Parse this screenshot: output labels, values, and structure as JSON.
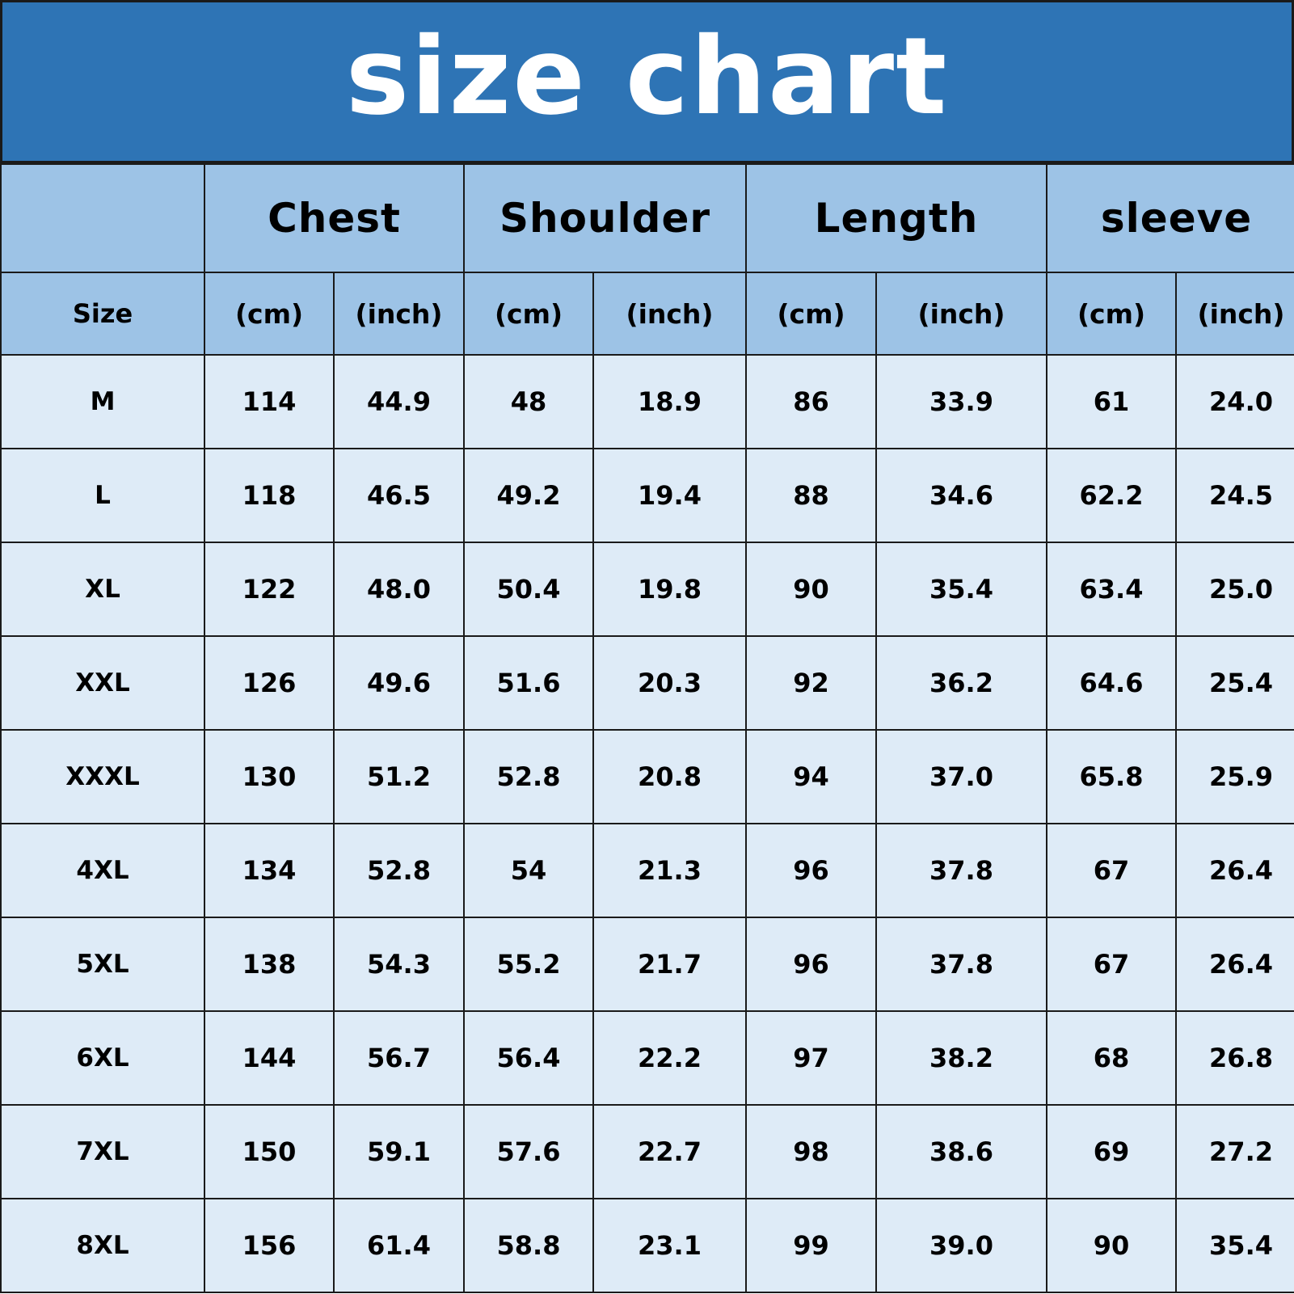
{
  "title": "size chart",
  "colors": {
    "banner": "#2e74b5",
    "header": "#9dc3e6",
    "body": "#deebf7",
    "title_text": "#ffffff"
  },
  "groups": [
    "Chest",
    "Shoulder",
    "Length",
    "sleeve"
  ],
  "size_label": "Size",
  "units": {
    "cm": "(cm)",
    "inch": "(inch)"
  },
  "rows": [
    {
      "size": "M",
      "values": [
        "114",
        "44.9",
        "48",
        "18.9",
        "86",
        "33.9",
        "61",
        "24.0"
      ]
    },
    {
      "size": "L",
      "values": [
        "118",
        "46.5",
        "49.2",
        "19.4",
        "88",
        "34.6",
        "62.2",
        "24.5"
      ]
    },
    {
      "size": "XL",
      "values": [
        "122",
        "48.0",
        "50.4",
        "19.8",
        "90",
        "35.4",
        "63.4",
        "25.0"
      ]
    },
    {
      "size": "XXL",
      "values": [
        "126",
        "49.6",
        "51.6",
        "20.3",
        "92",
        "36.2",
        "64.6",
        "25.4"
      ]
    },
    {
      "size": "XXXL",
      "values": [
        "130",
        "51.2",
        "52.8",
        "20.8",
        "94",
        "37.0",
        "65.8",
        "25.9"
      ]
    },
    {
      "size": "4XL",
      "values": [
        "134",
        "52.8",
        "54",
        "21.3",
        "96",
        "37.8",
        "67",
        "26.4"
      ]
    },
    {
      "size": "5XL",
      "values": [
        "138",
        "54.3",
        "55.2",
        "21.7",
        "96",
        "37.8",
        "67",
        "26.4"
      ]
    },
    {
      "size": "6XL",
      "values": [
        "144",
        "56.7",
        "56.4",
        "22.2",
        "97",
        "38.2",
        "68",
        "26.8"
      ]
    },
    {
      "size": "7XL",
      "values": [
        "150",
        "59.1",
        "57.6",
        "22.7",
        "98",
        "38.6",
        "69",
        "27.2"
      ]
    },
    {
      "size": "8XL",
      "values": [
        "156",
        "61.4",
        "58.8",
        "23.1",
        "99",
        "39.0",
        "90",
        "35.4"
      ]
    }
  ]
}
